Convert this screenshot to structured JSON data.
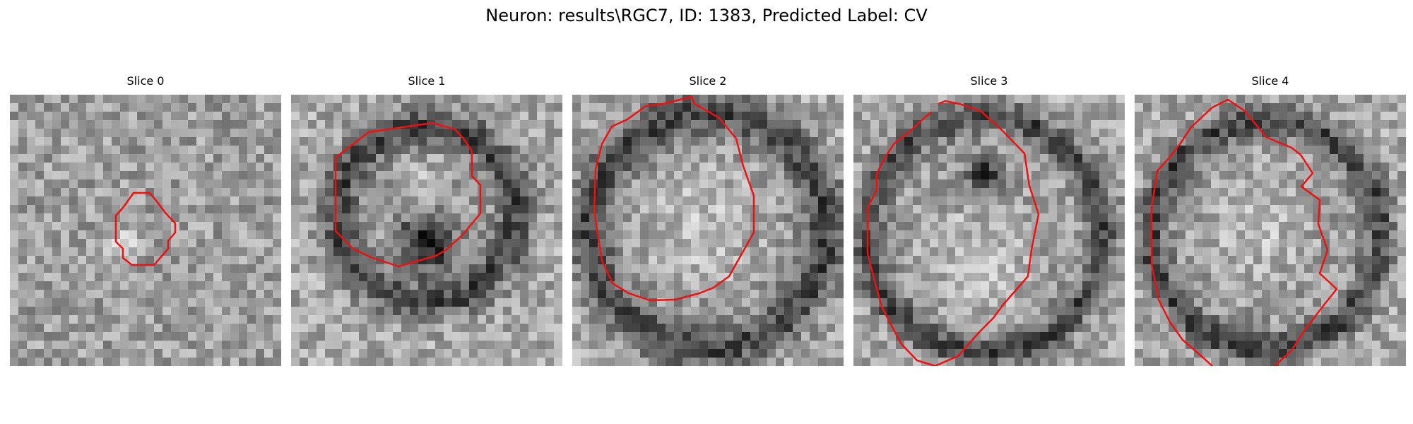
{
  "figure": {
    "title": "Neuron: results\\RGC7, ID: 1383, Predicted Label: CV"
  },
  "colors": {
    "contour": "#ee1111"
  },
  "slices": [
    {
      "title": "Slice 0",
      "image_description_icon": "grayscale-microscopy-patch-icon"
    },
    {
      "title": "Slice 1",
      "image_description_icon": "grayscale-microscopy-patch-icon"
    },
    {
      "title": "Slice 2",
      "image_description_icon": "grayscale-microscopy-patch-icon"
    },
    {
      "title": "Slice 3",
      "image_description_icon": "grayscale-microscopy-patch-icon"
    },
    {
      "title": "Slice 4",
      "image_description_icon": "grayscale-microscopy-patch-icon"
    }
  ]
}
